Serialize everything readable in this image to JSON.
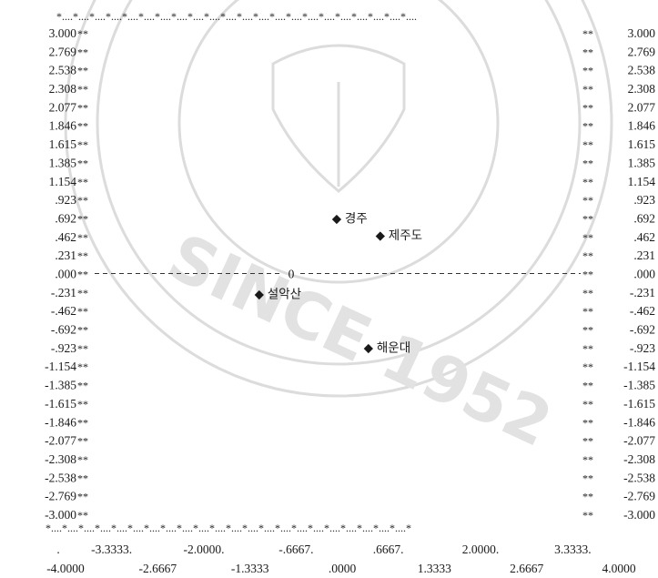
{
  "chart_data": {
    "type": "scatter",
    "title": "",
    "xlabel": "",
    "ylabel": "",
    "xlim": [
      -4.0,
      4.0
    ],
    "ylim": [
      -3.0,
      3.0
    ],
    "grid": false,
    "y_ticks": [
      "3.000",
      "2.769",
      "2.538",
      "2.308",
      "2.077",
      "1.846",
      "1.615",
      "1.385",
      "1.154",
      ".923",
      ".692",
      ".462",
      ".231",
      ".000",
      "-.231",
      "-.462",
      "-.692",
      "-.923",
      "-1.154",
      "-1.385",
      "-1.615",
      "-1.846",
      "-2.077",
      "-2.308",
      "-2.538",
      "-2.769",
      "-3.000"
    ],
    "x_ticks_upper": [
      "-3.3333.",
      "-2.0000.",
      "-.6667.",
      ".6667.",
      "2.0000.",
      "3.3333."
    ],
    "x_ticks_lower": [
      "-4.0000",
      "-2.6667",
      "-1.3333",
      ".0000",
      "1.3333",
      "2.6667",
      "4.0000"
    ],
    "origin_label": "0",
    "point_marker": "◆",
    "points": [
      {
        "label": "경주",
        "x": -0.08,
        "y": 0.692
      },
      {
        "label": "제주도",
        "x": 0.55,
        "y": 0.48
      },
      {
        "label": "설악산",
        "x": -1.2,
        "y": -0.25
      },
      {
        "label": "해운대",
        "x": 0.38,
        "y": -0.92
      }
    ]
  }
}
